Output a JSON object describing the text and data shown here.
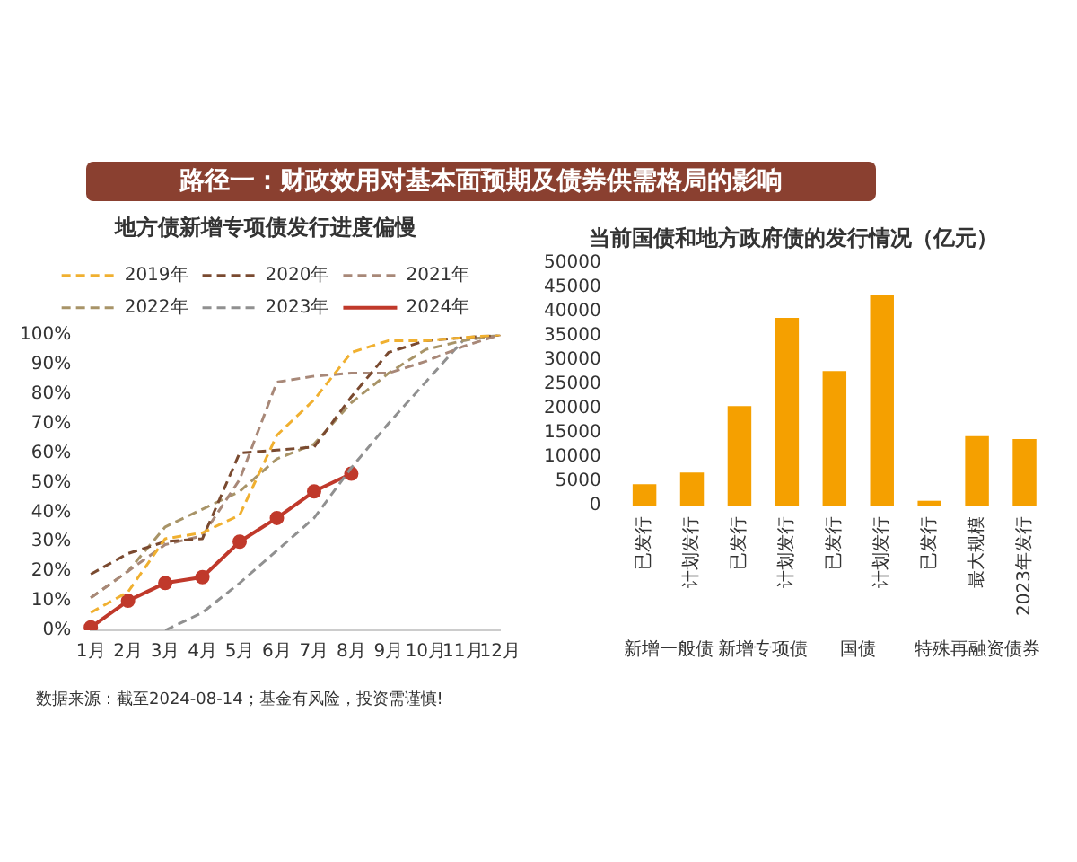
{
  "chart_data": [
    {
      "type": "line",
      "title": "地方债新增专项债发行进度偏慢",
      "annotations": [
        "路径一：财政效用对基本面预期及债券供需格局的影响",
        "数据来源：截至2024-08-14；基金有风险，投资需谨慎!"
      ],
      "categories": [
        "1月",
        "2月",
        "3月",
        "4月",
        "5月",
        "6月",
        "7月",
        "8月",
        "9月",
        "10月",
        "11月",
        "12月"
      ],
      "series": [
        {
          "name": "2019年",
          "color": "#f0b030",
          "line_style": "dashed",
          "marker": "none",
          "values": [
            6,
            13,
            31,
            33,
            39,
            66,
            78,
            94,
            98,
            98,
            99,
            100
          ]
        },
        {
          "name": "2020年",
          "color": "#7a4a30",
          "line_style": "dashed",
          "marker": "none",
          "values": [
            19,
            26,
            30,
            31,
            60,
            61,
            62,
            79,
            94,
            98,
            99,
            100
          ]
        },
        {
          "name": "2021年",
          "color": "#a88878",
          "line_style": "dashed",
          "marker": "none",
          "values": [
            11,
            20,
            29,
            32,
            51,
            84,
            86,
            87,
            87,
            91,
            96,
            100
          ]
        },
        {
          "name": "2022年",
          "color": "#a89468",
          "line_style": "dashed",
          "marker": "none",
          "values": [
            11,
            20,
            35,
            41,
            47,
            58,
            63,
            77,
            87,
            95,
            98,
            100
          ]
        },
        {
          "name": "2023年",
          "color": "#909090",
          "line_style": "dashed",
          "marker": "none",
          "values": [
            null,
            null,
            0,
            6,
            16,
            27,
            38,
            55,
            70,
            84,
            98,
            100
          ]
        },
        {
          "name": "2024年",
          "color": "#c0392b",
          "line_style": "solid",
          "marker": "circle",
          "values": [
            1,
            10,
            16,
            18,
            30,
            38,
            47,
            53,
            null,
            null,
            null,
            null
          ]
        }
      ],
      "ylim": [
        0,
        100
      ],
      "yticks": [
        {
          "value": 0,
          "label": "0%"
        },
        {
          "value": 10,
          "label": "10%"
        },
        {
          "value": 20,
          "label": "20%"
        },
        {
          "value": 30,
          "label": "30%"
        },
        {
          "value": 40,
          "label": "40%"
        },
        {
          "value": 50,
          "label": "50%"
        },
        {
          "value": 60,
          "label": "60%"
        },
        {
          "value": 70,
          "label": "70%"
        },
        {
          "value": 80,
          "label": "80%"
        },
        {
          "value": 90,
          "label": "90%"
        },
        {
          "value": 100,
          "label": "100%"
        }
      ],
      "legend": "top"
    },
    {
      "type": "bar",
      "title": "当前国债和地方政府债的发行情况（亿元）",
      "categories": [
        "已发行",
        "计划发行",
        "已发行",
        "计划发行",
        "已发行",
        "计划发行",
        "已发行",
        "最大规模",
        "2023年发行"
      ],
      "annotations": [
        "新增一般债",
        "新增专项债",
        "国债",
        "特殊再融资债券"
      ],
      "values": [
        4400,
        6800,
        20500,
        38700,
        27700,
        43300,
        1000,
        14300,
        13700
      ],
      "color": "#f5a000",
      "ylim": [
        0,
        50000
      ],
      "yticks": [
        0,
        5000,
        10000,
        15000,
        20000,
        25000,
        30000,
        35000,
        40000,
        45000,
        50000
      ]
    }
  ]
}
